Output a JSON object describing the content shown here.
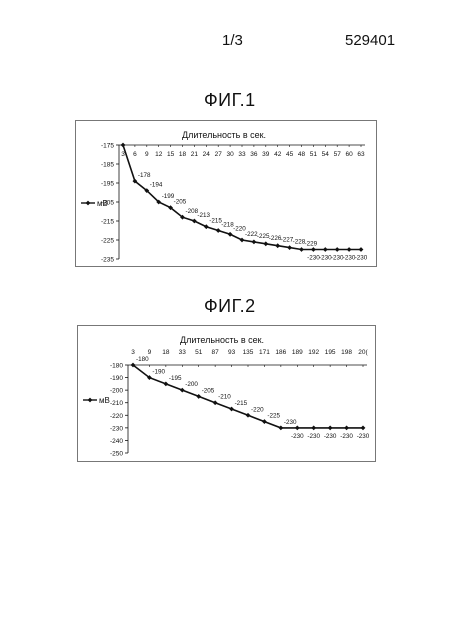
{
  "header": {
    "page": "1/3",
    "patent": "529401"
  },
  "colors": {
    "line": "#111111",
    "frame": "#777777",
    "background": "#ffffff"
  },
  "chart_data": [
    {
      "type": "line",
      "title": "ФИГ.1",
      "xlabel": "Длительность в сек.",
      "ylabel": "",
      "x_axis_position": "top",
      "categories": [
        "3",
        "6",
        "9",
        "12",
        "15",
        "18",
        "21",
        "24",
        "27",
        "30",
        "33",
        "36",
        "39",
        "42",
        "45",
        "48",
        "51",
        "54",
        "57",
        "60",
        "63"
      ],
      "series": [
        {
          "name": "мВ",
          "values": [
            -175,
            -194,
            -199,
            -205,
            -208,
            -213,
            -215,
            -218,
            -220,
            -222,
            -225,
            -226,
            -227,
            -228,
            -229,
            -230,
            -230,
            -230,
            -230,
            -230,
            -230
          ]
        }
      ],
      "data_labels": [
        "",
        "-178",
        "-194",
        "-199",
        "-205",
        "-208",
        "-213",
        "-215",
        "-218",
        "-220",
        "-222",
        "-225",
        "-226",
        "-227",
        "-228",
        "-229",
        "-230",
        "-230",
        "-230",
        "-230",
        "-230"
      ],
      "y_ticks": [
        "-175",
        "-185",
        "-195",
        "-205",
        "-215",
        "-225",
        "-235"
      ],
      "ylim": [
        -235,
        -175
      ],
      "legend": "left",
      "grid": false
    },
    {
      "type": "line",
      "title": "ФИГ.2",
      "xlabel": "Длительность в сек.",
      "ylabel": "",
      "x_axis_position": "top",
      "categories": [
        "3",
        "9",
        "18",
        "33",
        "51",
        "87",
        "93",
        "135",
        "171",
        "186",
        "189",
        "192",
        "195",
        "198",
        "20("
      ],
      "series": [
        {
          "name": "мВ",
          "values": [
            -180,
            -190,
            -195,
            -200,
            -205,
            -210,
            -215,
            -220,
            -225,
            -230,
            -230,
            -230,
            -230,
            -230,
            -230
          ]
        }
      ],
      "data_labels": [
        "-180",
        "-190",
        "-195",
        "-200",
        "-205",
        "-210",
        "-215",
        "-220",
        "-225",
        "-230",
        "-230",
        "-230",
        "-230",
        "-230",
        "-230"
      ],
      "y_ticks": [
        "-180",
        "-190",
        "-200",
        "-210",
        "-220",
        "-230",
        "-240",
        "-250"
      ],
      "ylim": [
        -250,
        -180
      ],
      "legend": "left",
      "grid": false
    }
  ]
}
